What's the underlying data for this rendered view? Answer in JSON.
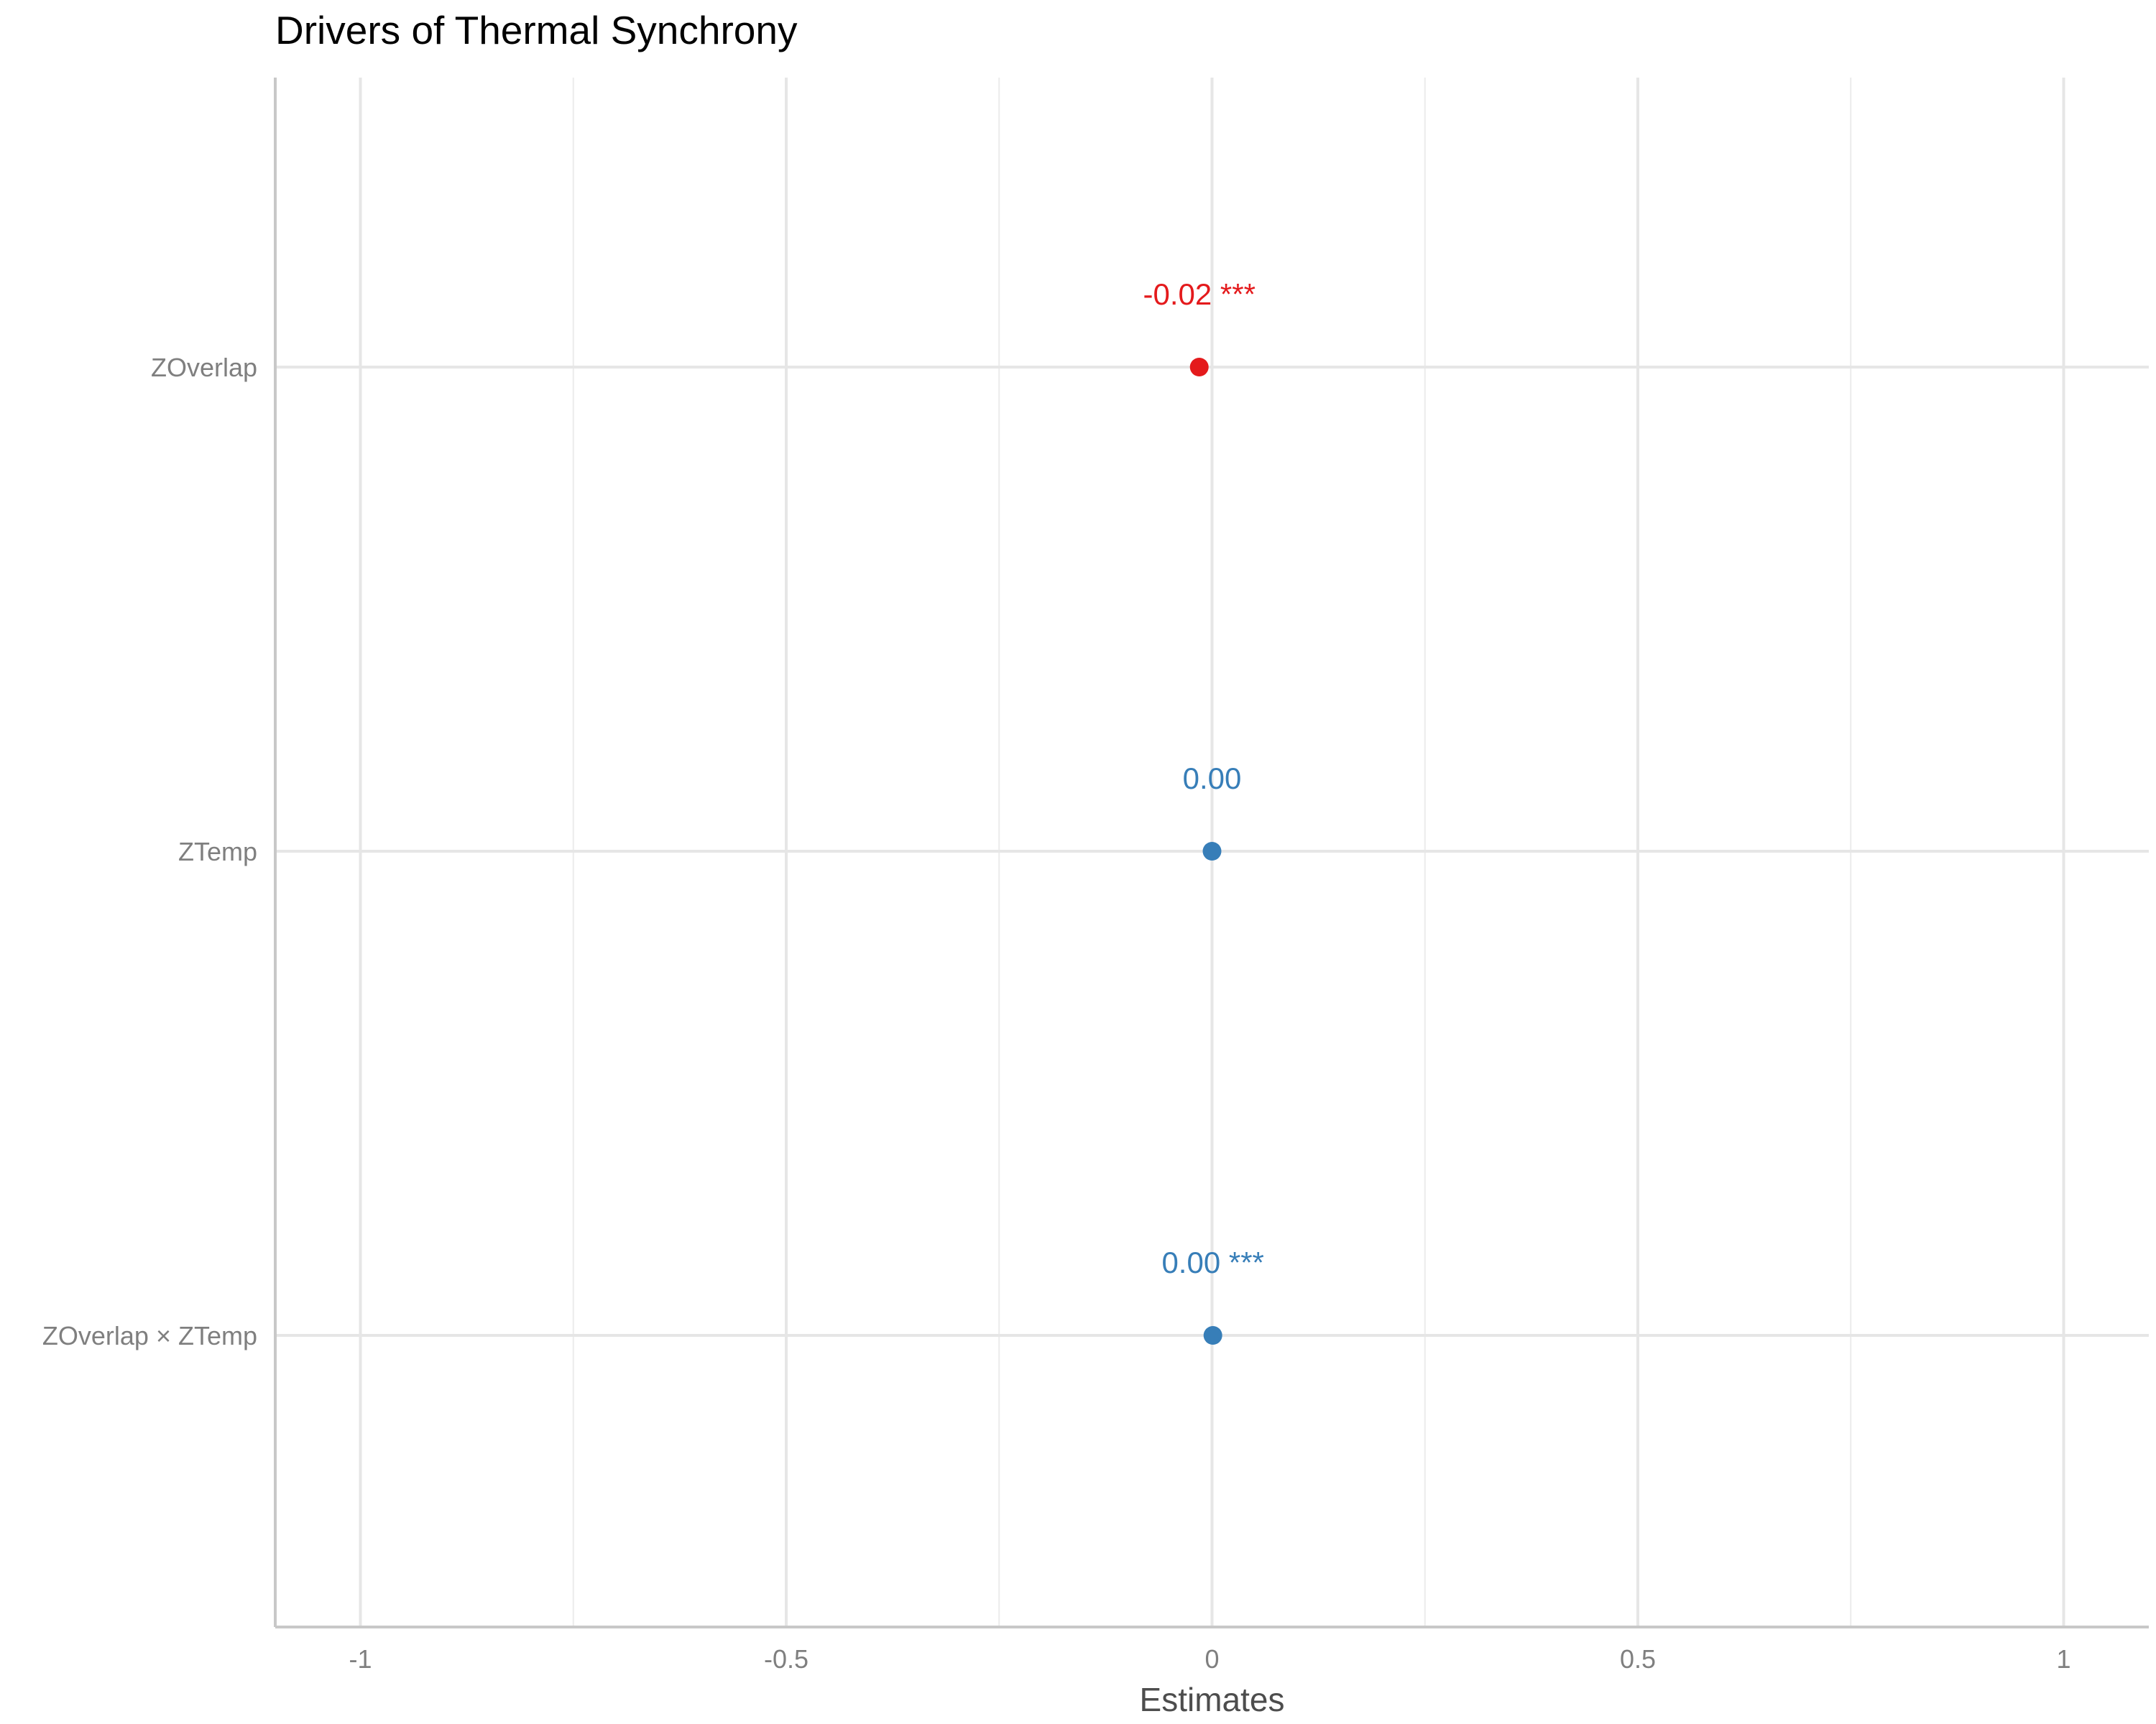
{
  "chart_data": {
    "type": "scatter",
    "title": "Drivers of Thermal Synchrony",
    "xlabel": "Estimates",
    "ylabel": "",
    "xlim": [
      -1.1,
      1.1
    ],
    "x_ticks": [
      -1,
      -0.5,
      0,
      0.5,
      1
    ],
    "x_tick_labels": [
      "-1",
      "-0.5",
      "0",
      "0.5",
      "1"
    ],
    "categories": [
      "ZOverlap",
      "ZTemp",
      "ZOverlap × ZTemp"
    ],
    "grid": true,
    "points": [
      {
        "term": "ZOverlap",
        "estimate": -0.015,
        "label": "-0.02 ***",
        "color": "#e41a1c"
      },
      {
        "term": "ZTemp",
        "estimate": 0.0,
        "label": "0.00",
        "color": "#377eb8"
      },
      {
        "term": "ZOverlap × ZTemp",
        "estimate": 0.001,
        "label": "0.00 ***",
        "color": "#377eb8"
      }
    ]
  }
}
